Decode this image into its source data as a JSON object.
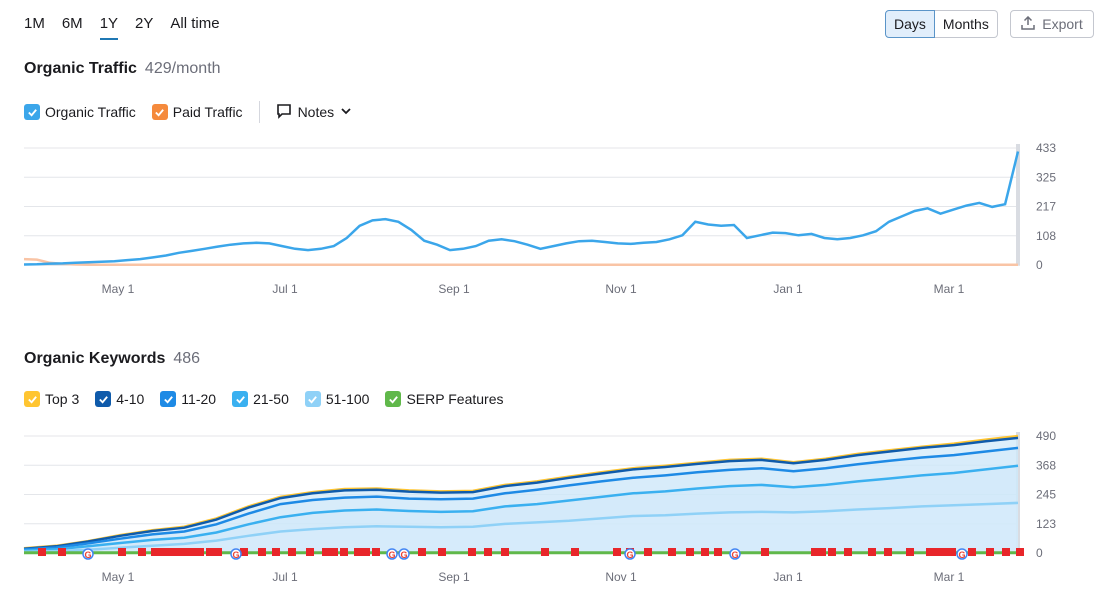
{
  "range_tabs": [
    {
      "label": "1M",
      "active": false
    },
    {
      "label": "6M",
      "active": false
    },
    {
      "label": "1Y",
      "active": true
    },
    {
      "label": "2Y",
      "active": false
    },
    {
      "label": "All time",
      "active": false
    }
  ],
  "view_toggle": {
    "days": "Days",
    "months": "Months",
    "active": "Days"
  },
  "export_label": "Export",
  "traffic": {
    "title": "Organic Traffic",
    "value": "429/month",
    "legend": [
      {
        "label": "Organic Traffic",
        "color": "#3ba6ea",
        "checked": true
      },
      {
        "label": "Paid Traffic",
        "color": "#f58a3c",
        "checked": true
      }
    ],
    "notes_label": "Notes"
  },
  "keywords": {
    "title": "Organic Keywords",
    "value": "486",
    "legend": [
      {
        "label": "Top 3",
        "color": "#ffc531",
        "checked": true
      },
      {
        "label": "4-10",
        "color": "#0f5bab",
        "checked": true
      },
      {
        "label": "11-20",
        "color": "#1e8ae5",
        "checked": true
      },
      {
        "label": "21-50",
        "color": "#3ab0f0",
        "checked": true
      },
      {
        "label": "51-100",
        "color": "#8fd1f7",
        "checked": true
      },
      {
        "label": "SERP Features",
        "color": "#60b84a",
        "checked": true
      }
    ]
  },
  "chart_data": [
    {
      "type": "line",
      "title": "Organic Traffic",
      "x_ticks": [
        "May 1",
        "Jul 1",
        "Sep 1",
        "Nov 1",
        "Jan 1",
        "Mar 1"
      ],
      "y_ticks": [
        "0",
        "108",
        "217",
        "325",
        "433"
      ],
      "ylim": [
        0,
        433
      ],
      "grid": true,
      "series": [
        {
          "name": "Organic Traffic",
          "color": "#3ba6ea",
          "values": [
            2,
            3,
            5,
            6,
            8,
            10,
            12,
            14,
            18,
            22,
            28,
            35,
            45,
            52,
            60,
            68,
            75,
            80,
            82,
            80,
            70,
            60,
            55,
            60,
            70,
            100,
            145,
            165,
            170,
            160,
            130,
            90,
            75,
            55,
            60,
            70,
            90,
            95,
            88,
            75,
            60,
            70,
            80,
            88,
            90,
            85,
            80,
            78,
            82,
            85,
            95,
            110,
            160,
            150,
            145,
            148,
            100,
            110,
            120,
            118,
            110,
            115,
            100,
            95,
            100,
            110,
            125,
            160,
            180,
            200,
            210,
            190,
            205,
            220,
            230,
            215,
            225,
            420
          ]
        },
        {
          "name": "Paid Traffic",
          "color": "#f58a3c",
          "values": [
            22,
            20,
            8,
            4,
            2,
            1,
            1,
            1,
            1,
            1,
            1,
            1,
            1,
            1,
            1,
            1,
            1,
            1,
            1,
            1,
            1,
            1,
            1,
            1,
            1,
            1,
            1,
            1,
            1,
            1,
            1,
            1,
            1,
            1,
            1,
            1,
            1,
            1,
            1,
            1,
            1,
            1,
            1,
            1,
            1,
            1,
            1,
            1,
            1,
            1,
            1,
            1,
            1,
            1,
            1,
            1,
            1,
            1,
            1,
            1,
            1,
            1,
            1,
            1,
            1,
            1,
            1,
            1,
            1,
            1,
            1,
            1,
            1,
            1,
            1,
            1,
            1,
            1
          ]
        }
      ]
    },
    {
      "type": "area",
      "title": "Organic Keywords",
      "x_ticks": [
        "May 1",
        "Jul 1",
        "Sep 1",
        "Nov 1",
        "Jan 1",
        "Mar 1"
      ],
      "y_ticks": [
        "0",
        "123",
        "245",
        "368",
        "490"
      ],
      "ylim": [
        0,
        490
      ],
      "grid": true,
      "series": [
        {
          "name": "Top 3",
          "color": "#ffc531",
          "values": [
            20,
            30,
            50,
            75,
            95,
            110,
            145,
            195,
            235,
            255,
            268,
            270,
            262,
            258,
            260,
            285,
            300,
            320,
            338,
            355,
            365,
            378,
            390,
            395,
            380,
            395,
            415,
            430,
            445,
            458,
            475,
            490
          ]
        },
        {
          "name": "4-10",
          "color": "#0f5bab",
          "values": [
            18,
            28,
            48,
            72,
            92,
            106,
            140,
            190,
            230,
            250,
            262,
            265,
            257,
            253,
            255,
            280,
            295,
            315,
            333,
            350,
            360,
            373,
            385,
            390,
            376,
            390,
            410,
            425,
            440,
            452,
            468,
            482
          ]
        },
        {
          "name": "11-20",
          "color": "#1e8ae5",
          "values": [
            15,
            23,
            40,
            60,
            78,
            90,
            120,
            165,
            205,
            222,
            232,
            236,
            228,
            225,
            228,
            250,
            265,
            283,
            300,
            315,
            325,
            338,
            348,
            355,
            342,
            355,
            372,
            386,
            400,
            410,
            425,
            440
          ]
        },
        {
          "name": "21-50",
          "color": "#3ab0f0",
          "values": [
            10,
            16,
            28,
            42,
            55,
            64,
            86,
            120,
            150,
            168,
            178,
            182,
            176,
            172,
            175,
            195,
            205,
            220,
            235,
            250,
            258,
            270,
            280,
            285,
            275,
            285,
            300,
            312,
            325,
            335,
            350,
            365
          ]
        },
        {
          "name": "51-100",
          "color": "#8fd1f7",
          "values": [
            5,
            8,
            14,
            22,
            30,
            38,
            52,
            72,
            90,
            100,
            108,
            112,
            110,
            108,
            110,
            122,
            128,
            135,
            145,
            155,
            158,
            165,
            170,
            172,
            170,
            175,
            182,
            188,
            195,
            200,
            205,
            210
          ]
        },
        {
          "name": "SERP Features",
          "color": "#60b84a",
          "values": [
            1,
            1,
            1,
            1,
            1,
            1,
            1,
            1,
            1,
            1,
            1,
            1,
            1,
            1,
            1,
            1,
            1,
            1,
            1,
            1,
            1,
            1,
            1,
            1,
            1,
            1,
            1,
            1,
            1,
            1,
            1,
            1
          ]
        }
      ]
    }
  ]
}
